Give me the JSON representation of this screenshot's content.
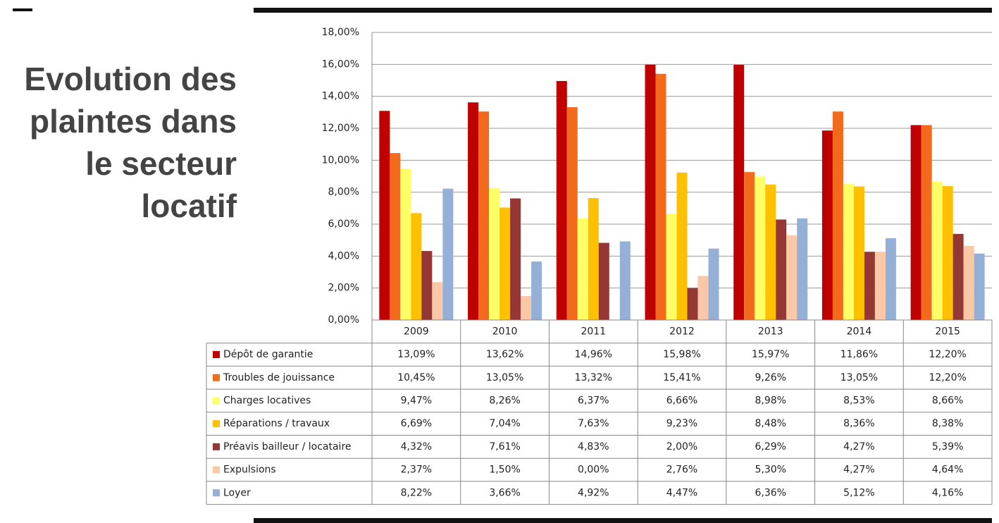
{
  "chart_data": {
    "type": "bar",
    "title": "Evolution des\nplaintes dans\nle secteur\nlocatif",
    "categories": [
      "2009",
      "2010",
      "2011",
      "2012",
      "2013",
      "2014",
      "2015"
    ],
    "ylim": [
      0,
      18
    ],
    "yticks": [
      {
        "value": 0,
        "label": "0,00%"
      },
      {
        "value": 2,
        "label": "2,00%"
      },
      {
        "value": 4,
        "label": "4,00%"
      },
      {
        "value": 6,
        "label": "6,00%"
      },
      {
        "value": 8,
        "label": "8,00%"
      },
      {
        "value": 10,
        "label": "10,00%"
      },
      {
        "value": 12,
        "label": "12,00%"
      },
      {
        "value": 14,
        "label": "14,00%"
      },
      {
        "value": 16,
        "label": "16,00%"
      },
      {
        "value": 18,
        "label": "18,00%"
      }
    ],
    "grid": true,
    "series": [
      {
        "name": "Dépôt de garantie",
        "color": "#c00000",
        "values": [
          13.09,
          13.62,
          14.96,
          15.98,
          15.97,
          11.86,
          12.2
        ],
        "value_labels": [
          "13,09%",
          "13,62%",
          "14,96%",
          "15,98%",
          "15,97%",
          "11,86%",
          "12,20%"
        ]
      },
      {
        "name": "Troubles de jouissance",
        "color": "#f36a1c",
        "values": [
          10.45,
          13.05,
          13.32,
          15.41,
          9.26,
          13.05,
          12.2
        ],
        "value_labels": [
          "10,45%",
          "13,05%",
          "13,32%",
          "15,41%",
          "9,26%",
          "13,05%",
          "12,20%"
        ]
      },
      {
        "name": "Charges locatives",
        "color": "#ffff66",
        "values": [
          9.47,
          8.26,
          6.37,
          6.66,
          8.98,
          8.53,
          8.66
        ],
        "value_labels": [
          "9,47%",
          "8,26%",
          "6,37%",
          "6,66%",
          "8,98%",
          "8,53%",
          "8,66%"
        ]
      },
      {
        "name": "Réparations / travaux",
        "color": "#ffc000",
        "values": [
          6.69,
          7.04,
          7.63,
          9.23,
          8.48,
          8.36,
          8.38
        ],
        "value_labels": [
          "6,69%",
          "7,04%",
          "7,63%",
          "9,23%",
          "8,48%",
          "8,36%",
          "8,38%"
        ]
      },
      {
        "name": "Préavis bailleur / locataire",
        "color": "#953735",
        "values": [
          4.32,
          7.61,
          4.83,
          2.0,
          6.29,
          4.27,
          5.39
        ],
        "value_labels": [
          "4,32%",
          "7,61%",
          "4,83%",
          "2,00%",
          "6,29%",
          "4,27%",
          "5,39%"
        ]
      },
      {
        "name": "Expulsions",
        "color": "#fac8a6",
        "values": [
          2.37,
          1.5,
          0,
          2.76,
          5.3,
          4.27,
          4.64
        ],
        "value_labels": [
          "2,37%",
          "1,50%",
          "0,00%",
          "2,76%",
          "5,30%",
          "4,27%",
          "4,64%"
        ]
      },
      {
        "name": "Loyer",
        "color": "#95b0d6",
        "values": [
          8.22,
          3.66,
          4.92,
          4.47,
          6.36,
          5.12,
          4.16
        ],
        "value_labels": [
          "8,22%",
          "3,66%",
          "4,92%",
          "4,47%",
          "6,36%",
          "5,12%",
          "4,16%"
        ]
      }
    ]
  }
}
